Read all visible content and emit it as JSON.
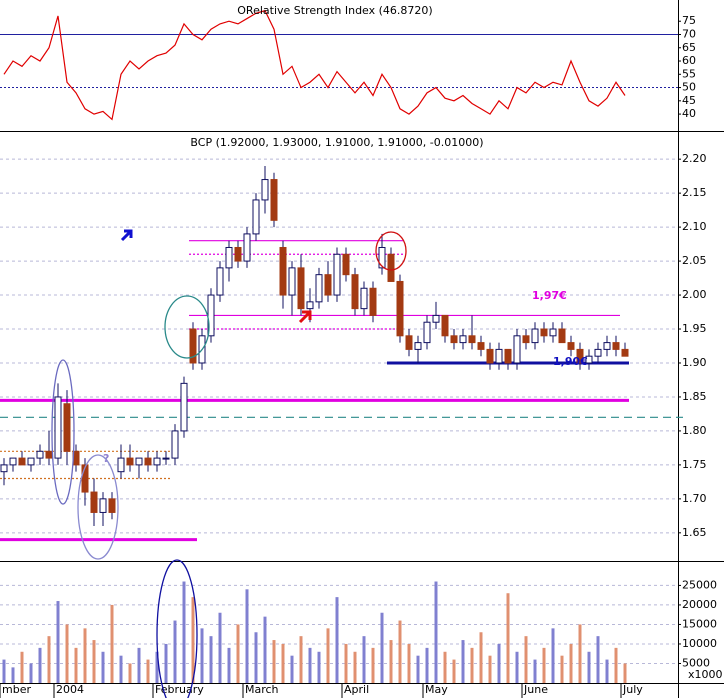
{
  "chart_data": [
    {
      "type": "line",
      "title": "ORelative Strength Index (46.8720)",
      "color": "#e00000",
      "values": [
        55,
        60,
        58,
        62,
        60,
        65,
        77,
        52,
        48,
        42,
        40,
        41,
        38,
        55,
        60,
        57,
        60,
        62,
        63,
        66,
        74,
        70,
        68,
        72,
        74,
        75,
        74,
        76,
        78,
        79,
        72,
        55,
        58,
        50,
        52,
        55,
        50,
        56,
        52,
        48,
        52,
        47,
        55,
        50,
        42,
        40,
        43,
        48,
        50,
        46,
        45,
        47,
        44,
        42,
        40,
        45,
        42,
        50,
        48,
        52,
        50,
        52,
        51,
        60,
        52,
        45,
        43,
        46,
        52,
        47
      ],
      "ylim": [
        34,
        83
      ],
      "yticks": [
        40,
        45,
        50,
        55,
        60,
        65,
        70,
        75
      ],
      "hlines": [
        {
          "value": 70,
          "style": "solid"
        },
        {
          "value": 50,
          "style": "dotted"
        }
      ]
    },
    {
      "type": "candlestick",
      "title": "BCP (1.92000, 1.93000, 1.91000, 1.91000, -0.01000)",
      "open": [
        1.74,
        1.75,
        1.76,
        1.75,
        1.76,
        1.77,
        1.76,
        1.84,
        1.77,
        1.75,
        1.71,
        1.68,
        1.7,
        1.74,
        1.76,
        1.75,
        1.76,
        1.75,
        1.76,
        1.76,
        1.8,
        1.95,
        1.9,
        1.94,
        2.0,
        2.04,
        2.07,
        2.05,
        2.09,
        2.14,
        2.17,
        2.07,
        2.0,
        2.04,
        1.98,
        1.99,
        2.03,
        2.0,
        2.06,
        2.03,
        1.98,
        2.01,
        2.04,
        2.06,
        2.02,
        1.94,
        1.92,
        1.93,
        1.96,
        1.97,
        1.94,
        1.93,
        1.94,
        1.93,
        1.92,
        1.9,
        1.92,
        1.9,
        1.94,
        1.93,
        1.95,
        1.94,
        1.95,
        1.93,
        1.92,
        1.9,
        1.91,
        1.92,
        1.93,
        1.92
      ],
      "high": [
        1.76,
        1.76,
        1.77,
        1.76,
        1.78,
        1.8,
        1.87,
        1.86,
        1.78,
        1.76,
        1.73,
        1.71,
        1.71,
        1.78,
        1.78,
        1.76,
        1.77,
        1.77,
        1.77,
        1.81,
        1.88,
        1.96,
        1.95,
        2.01,
        2.05,
        2.08,
        2.08,
        2.1,
        2.15,
        2.19,
        2.18,
        2.08,
        2.05,
        2.06,
        2.01,
        2.04,
        2.05,
        2.07,
        2.07,
        2.04,
        2.02,
        2.02,
        2.09,
        2.07,
        2.03,
        1.95,
        1.94,
        1.97,
        1.99,
        1.97,
        1.95,
        1.95,
        1.97,
        1.94,
        1.93,
        1.93,
        1.92,
        1.95,
        1.95,
        1.96,
        1.96,
        1.96,
        1.96,
        1.94,
        1.93,
        1.92,
        1.93,
        1.94,
        1.94,
        1.93
      ],
      "low": [
        1.72,
        1.74,
        1.75,
        1.74,
        1.75,
        1.75,
        1.75,
        1.75,
        1.74,
        1.69,
        1.66,
        1.66,
        1.67,
        1.73,
        1.74,
        1.73,
        1.74,
        1.74,
        1.75,
        1.75,
        1.79,
        1.89,
        1.89,
        1.93,
        1.99,
        2.02,
        2.04,
        2.04,
        2.08,
        2.12,
        2.1,
        1.98,
        1.97,
        1.97,
        1.96,
        1.98,
        1.99,
        1.99,
        2.02,
        1.97,
        1.97,
        1.96,
        2.03,
        2.02,
        1.93,
        1.91,
        1.9,
        1.92,
        1.95,
        1.93,
        1.92,
        1.92,
        1.92,
        1.91,
        1.89,
        1.89,
        1.89,
        1.89,
        1.92,
        1.92,
        1.93,
        1.93,
        1.93,
        1.91,
        1.89,
        1.89,
        1.9,
        1.91,
        1.91,
        1.91
      ],
      "close": [
        1.75,
        1.76,
        1.75,
        1.76,
        1.77,
        1.76,
        1.85,
        1.77,
        1.75,
        1.71,
        1.68,
        1.7,
        1.68,
        1.76,
        1.75,
        1.76,
        1.75,
        1.76,
        1.76,
        1.8,
        1.87,
        1.9,
        1.94,
        2.0,
        2.04,
        2.07,
        2.05,
        2.09,
        2.14,
        2.17,
        2.11,
        2.0,
        2.04,
        1.98,
        1.99,
        2.03,
        2.0,
        2.06,
        2.03,
        1.98,
        2.01,
        1.97,
        2.07,
        2.02,
        1.94,
        1.92,
        1.93,
        1.96,
        1.97,
        1.94,
        1.93,
        1.94,
        1.93,
        1.92,
        1.9,
        1.92,
        1.9,
        1.94,
        1.93,
        1.95,
        1.94,
        1.95,
        1.93,
        1.92,
        1.9,
        1.91,
        1.92,
        1.93,
        1.92,
        1.91
      ],
      "up_color": "#ffffff",
      "down_color": "#a33a12",
      "ylim": [
        1.61,
        2.24
      ],
      "yticks": [
        1.65,
        {
          "value": 1.7,
          "label": "1.70"
        },
        1.75,
        {
          "value": 1.8,
          "label": "1.80"
        },
        1.85,
        {
          "value": 1.9,
          "label": "1.90"
        },
        1.95,
        {
          "value": 2.0,
          "label": "2.00"
        },
        2.05,
        {
          "value": 2.1,
          "label": "2.10"
        },
        2.15,
        {
          "value": 2.2,
          "label": "2.20"
        }
      ],
      "grid": true,
      "levels": [
        {
          "value": 2.08,
          "from": 21,
          "to": 44,
          "color": "#e000e0",
          "style": "solid"
        },
        {
          "value": 2.06,
          "from": 21,
          "to": 44,
          "color": "#e000e0",
          "style": "dotted"
        },
        {
          "value": 1.97,
          "from": 21,
          "to": 68,
          "color": "#e000e0",
          "style": "solid"
        },
        {
          "value": 1.95,
          "from": 21,
          "to": 44,
          "color": "#e000e0",
          "style": "dotted"
        },
        {
          "value": 1.9,
          "from": 43,
          "to": 69,
          "color": "#1010a0",
          "style": "thick"
        },
        {
          "value": 1.845,
          "from": 0,
          "to": 69,
          "color": "#e000e0",
          "style": "thick"
        },
        {
          "value": 1.82,
          "from": 0,
          "to": 75,
          "color": "#2a8a8a",
          "style": "dashed"
        },
        {
          "value": 1.77,
          "from": 0,
          "to": 18,
          "color": "#d07020",
          "style": "dotted"
        },
        {
          "value": 1.73,
          "from": 0,
          "to": 18,
          "color": "#d07020",
          "style": "dotted"
        },
        {
          "value": 1.64,
          "from": 0,
          "to": 21,
          "color": "#e000e0",
          "style": "thick"
        }
      ],
      "annotations": [
        "1,97€",
        "1,90€",
        "?"
      ]
    },
    {
      "type": "bar",
      "up_color": "#8080d0",
      "down_color": "#e09070",
      "categories": [
        "mber",
        null,
        null,
        null,
        null,
        null,
        "2004",
        null,
        null,
        null,
        null,
        null,
        null,
        null,
        null,
        null,
        null,
        "February",
        null,
        null,
        null,
        null,
        null,
        null,
        null,
        null,
        null,
        "March",
        null,
        null,
        null,
        null,
        null,
        null,
        null,
        null,
        null,
        null,
        "April",
        null,
        null,
        null,
        null,
        null,
        null,
        null,
        null,
        "May",
        null,
        null,
        null,
        null,
        null,
        null,
        null,
        null,
        null,
        null,
        "June",
        null,
        null,
        null,
        null,
        null,
        null,
        null,
        null,
        null,
        null,
        "July"
      ],
      "values": [
        6000,
        4000,
        8000,
        5000,
        9000,
        12000,
        21000,
        15000,
        9000,
        14000,
        11000,
        8000,
        20000,
        7000,
        5000,
        9000,
        6000,
        8000,
        10000,
        16000,
        26000,
        22000,
        14000,
        12000,
        18000,
        9000,
        15000,
        24000,
        13000,
        17000,
        11000,
        10000,
        7000,
        12000,
        9000,
        8000,
        14000,
        22000,
        10000,
        8000,
        12000,
        9000,
        18000,
        11000,
        16000,
        10000,
        7000,
        9000,
        26000,
        8000,
        6000,
        11000,
        9000,
        13000,
        7000,
        10000,
        23000,
        8000,
        12000,
        6000,
        9000,
        14000,
        7000,
        10000,
        15000,
        8000,
        12000,
        6000,
        9000,
        5000
      ],
      "ylim": [
        0,
        31000
      ],
      "yticks": [
        5000,
        10000,
        15000,
        20000,
        25000
      ],
      "grid": true,
      "unit_label": "x1000"
    }
  ]
}
